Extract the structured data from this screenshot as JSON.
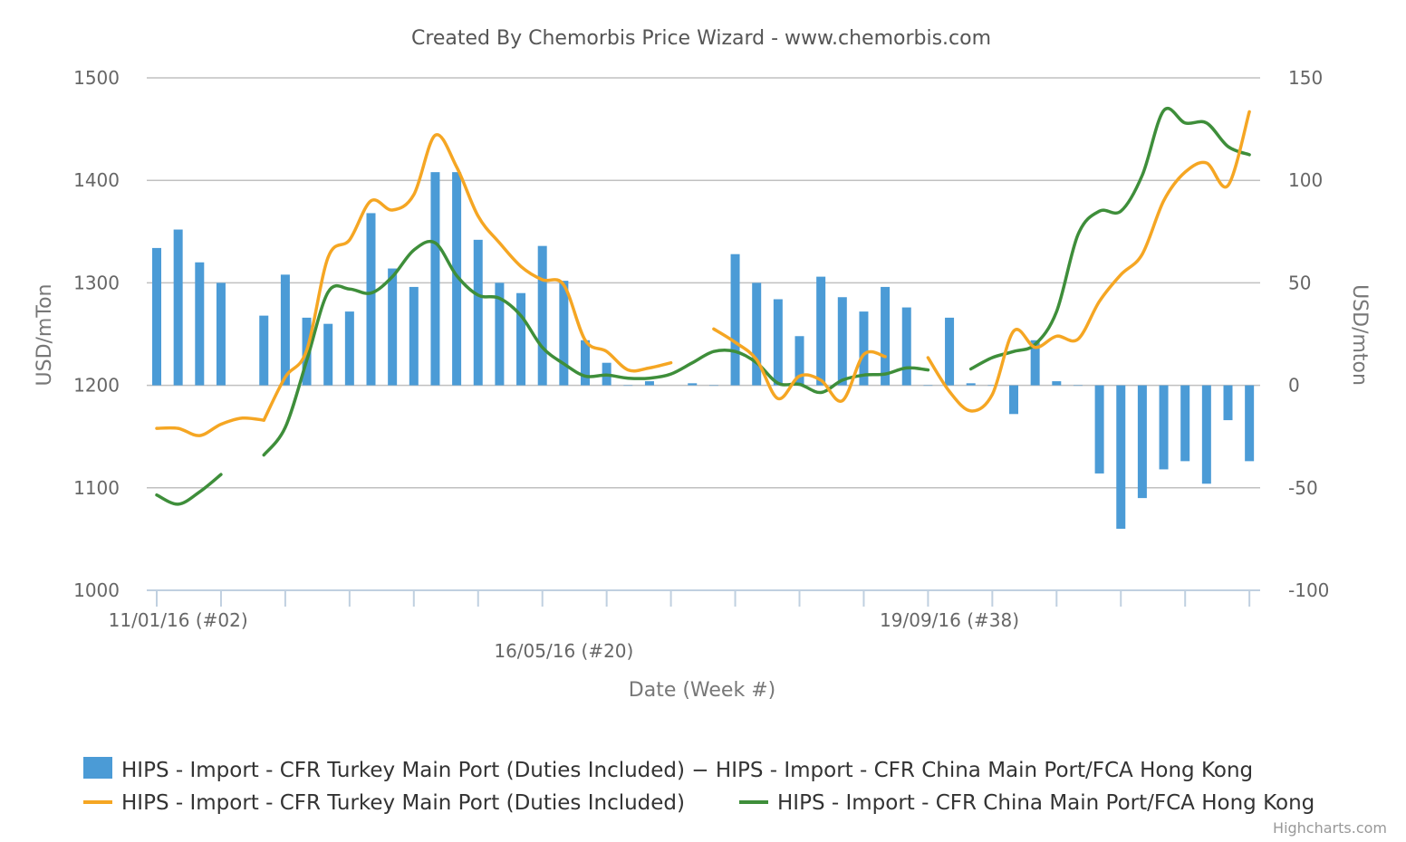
{
  "title": "Created By Chemorbis Price Wizard - www.chemorbis.com",
  "credits": "Highcharts.com",
  "colors": {
    "bar": "#4b9bd6",
    "turkey": "#f5a623",
    "china": "#3e8e3a",
    "grid": "#c0c0c0",
    "axis": "#c0d0e0"
  },
  "chart_data": {
    "type": "bar+line",
    "xlabel": "Date (Week #)",
    "x_tick_labels": [
      {
        "label": "11/01/16 (#02)",
        "week": 2
      },
      {
        "label": "16/05/16 (#20)",
        "week": 20
      },
      {
        "label": "19/09/16 (#38)",
        "week": 38
      }
    ],
    "x_range": [
      1,
      52
    ],
    "x_major_tick_every": 3,
    "y_left": {
      "label": "USD/mTon",
      "range": [
        1000,
        1500
      ],
      "ticks": [
        1000,
        1100,
        1200,
        1300,
        1400,
        1500
      ]
    },
    "y_right": {
      "label": "USD/mton",
      "range": [
        -100,
        150
      ],
      "ticks": [
        -100,
        -50,
        0,
        50,
        100,
        150
      ]
    },
    "grid": true,
    "legend_position": "bottom",
    "series": [
      {
        "name": "HIPS - Import - CFR Turkey Main Port (Duties Included) − HIPS - Import - CFR China Main Port/FCA Hong Kong",
        "kind": "bar",
        "axis": "right",
        "x": [
          1,
          2,
          3,
          4,
          6,
          7,
          8,
          9,
          10,
          11,
          12,
          13,
          14,
          15,
          16,
          17,
          18,
          19,
          20,
          21,
          22,
          23,
          24,
          26,
          27,
          28,
          29,
          30,
          31,
          32,
          33,
          34,
          35,
          36,
          37,
          38,
          39,
          40,
          41,
          42,
          43,
          44,
          45,
          46,
          47,
          48,
          49,
          50,
          51,
          52
        ],
        "values": [
          67,
          76,
          60,
          50,
          34,
          54,
          33,
          30,
          36,
          84,
          57,
          48,
          104,
          104,
          71,
          50,
          45,
          68,
          51,
          22,
          11,
          0,
          2,
          1,
          0,
          64,
          50,
          42,
          24,
          53,
          43,
          36,
          48,
          38,
          0,
          33,
          1,
          0,
          -14,
          22,
          2,
          0,
          -43,
          -70,
          -55,
          -41,
          -37,
          -48,
          -17,
          -37
        ]
      },
      {
        "name": "HIPS - Import - CFR Turkey Main Port (Duties Included)",
        "kind": "line",
        "axis": "left",
        "segments": [
          {
            "x": [
              1,
              2,
              3,
              4,
              5,
              6
            ],
            "values": [
              1158,
              1158,
              1151,
              1162,
              1168,
              1166
            ]
          },
          {
            "x": [
              6,
              7,
              8,
              9,
              10,
              11,
              12,
              13,
              14,
              15,
              16,
              17,
              18,
              19,
              20,
              21,
              22,
              23,
              24,
              25
            ],
            "values": [
              1166,
              1208,
              1234,
              1325,
              1342,
              1380,
              1371,
              1386,
              1444,
              1413,
              1365,
              1339,
              1316,
              1303,
              1298,
              1244,
              1233,
              1215,
              1217,
              1222
            ]
          },
          {
            "x": [
              27,
              28,
              29,
              30,
              31,
              32,
              33,
              34,
              35
            ],
            "values": [
              1255,
              1242,
              1225,
              1187,
              1209,
              1205,
              1185,
              1230,
              1228
            ]
          },
          {
            "x": [
              37,
              38,
              39,
              40,
              41,
              42,
              43,
              44,
              45,
              46,
              47,
              48,
              49,
              50,
              51,
              52
            ],
            "values": [
              1227,
              1194,
              1175,
              1191,
              1253,
              1237,
              1248,
              1245,
              1282,
              1308,
              1328,
              1380,
              1408,
              1417,
              1395,
              1467
            ]
          }
        ]
      },
      {
        "name": "HIPS - Import - CFR China Main Port/FCA Hong Kong",
        "kind": "line",
        "axis": "left",
        "segments": [
          {
            "x": [
              1,
              2,
              3,
              4
            ],
            "values": [
              1093,
              1084,
              1096,
              1113
            ]
          },
          {
            "x": [
              6,
              7,
              8,
              9,
              10,
              11,
              12,
              13,
              14,
              15,
              16,
              17,
              18,
              19,
              20,
              21,
              22,
              23,
              24,
              25,
              26,
              27,
              28,
              29,
              30,
              31,
              32,
              33,
              34,
              35,
              36,
              37
            ],
            "values": [
              1132,
              1159,
              1224,
              1291,
              1294,
              1290,
              1306,
              1332,
              1339,
              1307,
              1288,
              1285,
              1268,
              1237,
              1221,
              1209,
              1210,
              1207,
              1207,
              1211,
              1222,
              1233,
              1233,
              1222,
              1202,
              1201,
              1193,
              1205,
              1210,
              1211,
              1217,
              1215
            ]
          },
          {
            "x": [
              39,
              40,
              41,
              42,
              43,
              44,
              45,
              46,
              47,
              48,
              49,
              50,
              51,
              52
            ],
            "values": [
              1216,
              1227,
              1233,
              1240,
              1272,
              1347,
              1370,
              1370,
              1405,
              1468,
              1456,
              1456,
              1433,
              1425
            ]
          }
        ]
      }
    ]
  }
}
